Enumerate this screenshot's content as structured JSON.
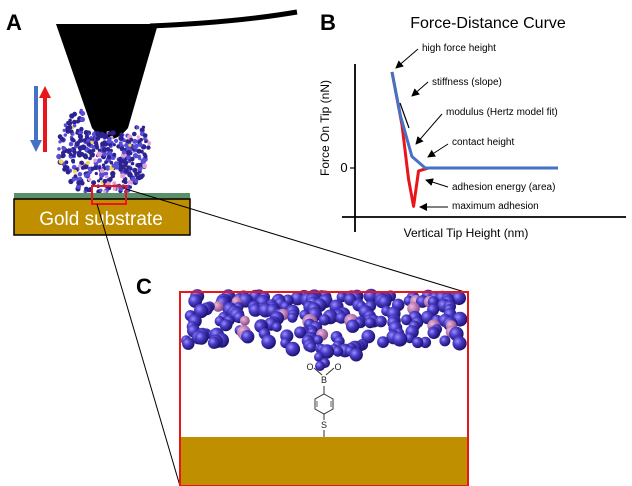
{
  "panels": {
    "a": {
      "letter": "A",
      "substrate_label": "Gold substrate"
    },
    "b": {
      "letter": "B",
      "chart_data": {
        "type": "line",
        "title": "Force-Distance Curve",
        "xlabel": "Vertical Tip Height (nm)",
        "ylabel": "Force On Tip (nN)",
        "y_tick_labels": [
          "0"
        ],
        "grid": false,
        "series": [
          {
            "color": "#4472c4",
            "description_role": "approach",
            "points": [
              [
                0.0,
                1.0
              ],
              [
                0.05,
                0.55
              ],
              [
                0.12,
                0.12
              ],
              [
                0.2,
                0.0
              ],
              [
                1.0,
                0.0
              ]
            ]
          },
          {
            "color": "#e8161b",
            "description_role": "retract",
            "points": [
              [
                0.0,
                1.0
              ],
              [
                0.06,
                0.45
              ],
              [
                0.1,
                -0.12
              ],
              [
                0.13,
                -0.4
              ],
              [
                0.16,
                -0.03
              ],
              [
                0.22,
                0.0
              ],
              [
                1.0,
                0.0
              ]
            ]
          }
        ],
        "annotations": [
          "high force height",
          "stiffness (slope)",
          "modulus (Hertz model fit)",
          "contact height",
          "adhesion energy (area)",
          "maximum adhesion"
        ]
      }
    },
    "c": {
      "letter": "C",
      "molecule_atoms": {
        "oxygen": "O",
        "boron": "B",
        "sulfur": "S"
      }
    }
  },
  "colors": {
    "gold": "#bf8f00",
    "gold_edge": "#7f6000",
    "sphere": "#3b2fa8",
    "sphere_highlight": "#8a7df0",
    "pink_sphere": "#c77ab5",
    "approach": "#4472c4",
    "retract": "#e8161b",
    "frame": "#e8161b",
    "tip": "#000000"
  }
}
